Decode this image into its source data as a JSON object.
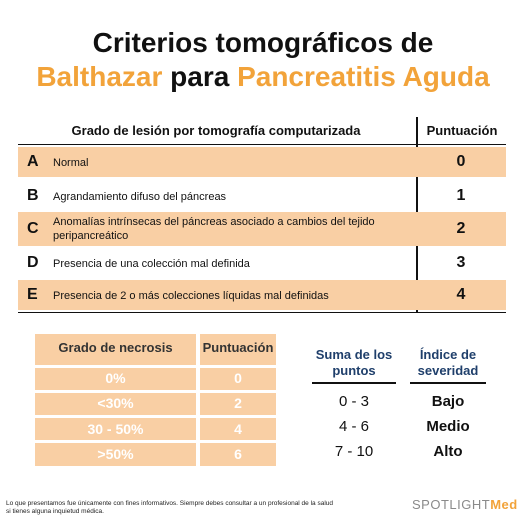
{
  "title": {
    "line1": "Criterios tomográficos de",
    "name": "Balthazar",
    "connector": "para",
    "condition": "Pancreatitis Aguda"
  },
  "main_table": {
    "header_grade": "Grado de lesión por tomografía computarizada",
    "header_score": "Puntuación",
    "rows": [
      {
        "letter": "A",
        "description": "Normal",
        "score": "0"
      },
      {
        "letter": "B",
        "description": "Agrandamiento difuso del páncreas",
        "score": "1"
      },
      {
        "letter": "C",
        "description": "Anomalías intrínsecas del páncreas asociado a cambios del tejido peripancreático",
        "score": "2"
      },
      {
        "letter": "D",
        "description": "Presencia de una colección mal definida",
        "score": "3"
      },
      {
        "letter": "E",
        "description": "Presencia de 2 o más colecciones líquidas mal definidas",
        "score": "4"
      }
    ]
  },
  "necrosis_table": {
    "header_grade": "Grado de necrosis",
    "header_score": "Puntuación",
    "rows": [
      {
        "grade": "0%",
        "score": "0"
      },
      {
        "grade": "<30%",
        "score": "2"
      },
      {
        "grade": "30 - 50%",
        "score": "4"
      },
      {
        "grade": ">50%",
        "score": "6"
      }
    ]
  },
  "severity_table": {
    "header_sum": "Suma de los puntos",
    "header_index": "Índice de severidad",
    "rows": [
      {
        "range": "0 - 3",
        "severity": "Bajo"
      },
      {
        "range": "4 - 6",
        "severity": "Medio"
      },
      {
        "range": "7 - 10",
        "severity": "Alto"
      }
    ]
  },
  "disclaimer": "Lo que presentamos fue únicamente con fines informativos. Siempre debes consultar a un profesional de la salud si tienes alguna inquietud médica.",
  "logo": {
    "part1": "SPOTLIGHT",
    "part2": "Med"
  },
  "colors": {
    "accent": "#f2a33a",
    "row_fill": "#f9cfa4",
    "severity_header": "#1f3f6b"
  }
}
